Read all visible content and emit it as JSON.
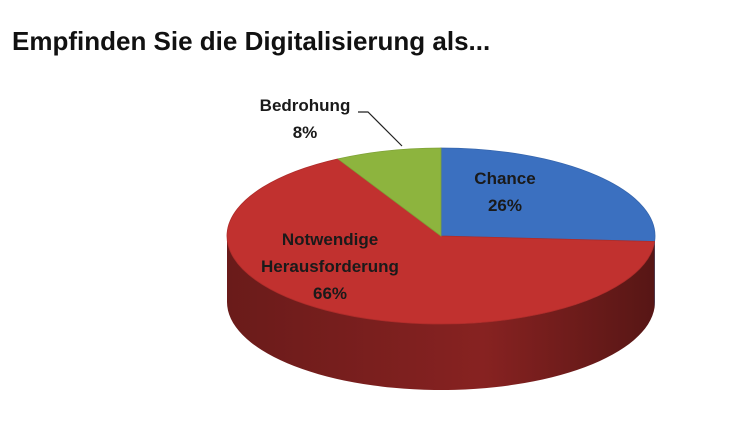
{
  "chart_data": {
    "type": "pie3d",
    "title": "Empfinden Sie die Digitalisierung als...",
    "categories": [
      "Chance",
      "Notwendige Herausforderung",
      "Bedrohung"
    ],
    "values": [
      26,
      66,
      8
    ],
    "value_labels": [
      "26%",
      "66%",
      "8%"
    ],
    "colors": [
      "#3b70c0",
      "#c1312f",
      "#8db43e"
    ]
  }
}
